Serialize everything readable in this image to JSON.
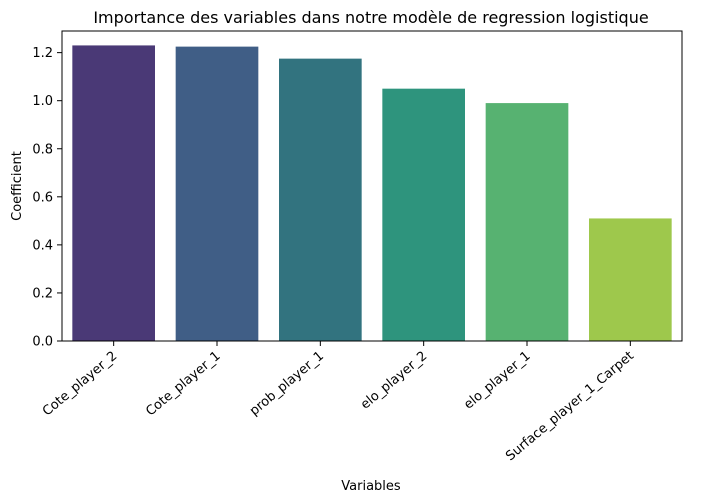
{
  "chart_data": {
    "type": "bar",
    "title": "Importance des variables dans notre modèle de regression logistique",
    "xlabel": "Variables",
    "ylabel": "Coefficient",
    "categories": [
      "Cote_player_2",
      "Cote_player_1",
      "prob_player_1",
      "elo_player_2",
      "elo_player_1",
      "Surface_player_1_Carpet"
    ],
    "values": [
      1.23,
      1.225,
      1.175,
      1.05,
      0.99,
      0.51
    ],
    "colors": [
      "#4a3976",
      "#405e86",
      "#32737f",
      "#2e947d",
      "#57b271",
      "#9ec84c"
    ],
    "yticks": [
      "0.0",
      "0.2",
      "0.4",
      "0.6",
      "0.8",
      "1.0",
      "1.2"
    ],
    "ylim": [
      0,
      1.29
    ],
    "grid": false,
    "legend": "none"
  }
}
